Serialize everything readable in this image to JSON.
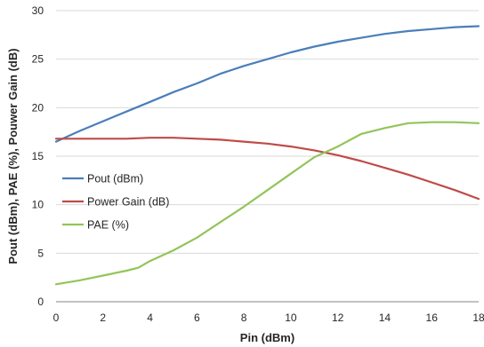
{
  "chart_data": {
    "type": "line",
    "title": "",
    "xlabel": "Pin (dBm)",
    "ylabel": "Pout (dBm), PAE (%), Pouwer Gain (dB)",
    "xlim": [
      0,
      18
    ],
    "ylim": [
      0,
      30
    ],
    "x_ticks": [
      "0",
      "2",
      "4",
      "6",
      "8",
      "10",
      "12",
      "14",
      "16",
      "18"
    ],
    "y_ticks": [
      "0",
      "5",
      "10",
      "15",
      "20",
      "25",
      "30"
    ],
    "grid": "horizontal",
    "legend_position": "middle-left",
    "series": [
      {
        "name": "Pout (dBm)",
        "color": "#4a7ebb",
        "x": [
          0,
          1,
          2,
          3,
          4,
          5,
          6,
          7,
          8,
          9,
          10,
          11,
          12,
          13,
          14,
          15,
          16,
          17,
          18
        ],
        "y": [
          16.5,
          17.6,
          18.6,
          19.6,
          20.6,
          21.6,
          22.5,
          23.5,
          24.3,
          25.0,
          25.7,
          26.3,
          26.8,
          27.2,
          27.6,
          27.9,
          28.1,
          28.3,
          28.4
        ]
      },
      {
        "name": "Power Gain (dB)",
        "color": "#be4b48",
        "x": [
          0,
          1,
          2,
          3,
          4,
          5,
          6,
          7,
          8,
          9,
          10,
          11,
          12,
          13,
          14,
          15,
          16,
          17,
          18
        ],
        "y": [
          16.8,
          16.8,
          16.8,
          16.8,
          16.9,
          16.9,
          16.8,
          16.7,
          16.5,
          16.3,
          16.0,
          15.6,
          15.1,
          14.5,
          13.8,
          13.1,
          12.3,
          11.5,
          10.6
        ]
      },
      {
        "name": "PAE (%)",
        "color": "#92c559",
        "x": [
          0,
          1,
          2,
          3,
          3.5,
          4,
          5,
          6,
          7,
          8,
          9,
          10,
          11,
          12,
          13,
          14,
          15,
          16,
          17,
          18
        ],
        "y": [
          1.8,
          2.2,
          2.7,
          3.2,
          3.5,
          4.2,
          5.3,
          6.6,
          8.2,
          9.8,
          11.5,
          13.2,
          14.9,
          16.0,
          17.3,
          17.9,
          18.4,
          18.5,
          18.5,
          18.4
        ]
      }
    ]
  }
}
